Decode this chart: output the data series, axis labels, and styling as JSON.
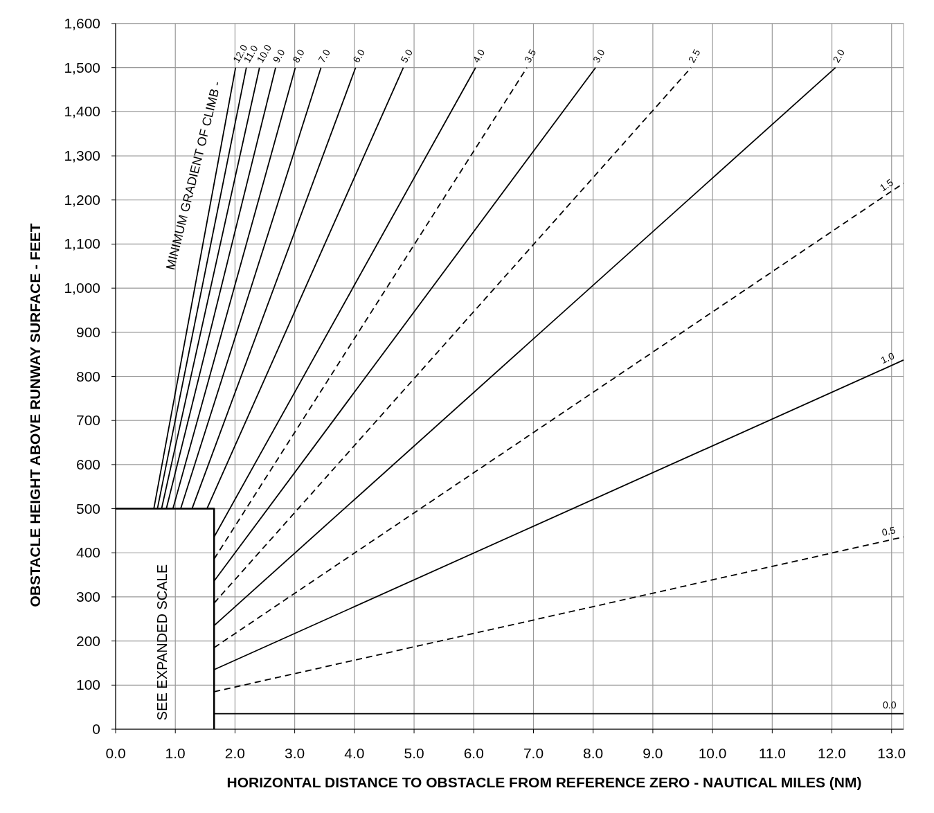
{
  "chart_data": {
    "type": "line",
    "xlabel": "HORIZONTAL DISTANCE TO OBSTACLE FROM REFERENCE ZERO - NAUTICAL MILES (NM)",
    "ylabel": "OBSTACLE HEIGHT ABOVE RUNWAY SURFACE - FEET",
    "xlim": [
      0,
      13.2
    ],
    "ylim": [
      0,
      1600
    ],
    "xticks": [
      {
        "value": 0,
        "label": "0.0"
      },
      {
        "value": 1,
        "label": "1.0"
      },
      {
        "value": 2,
        "label": "2.0"
      },
      {
        "value": 3,
        "label": "3.0"
      },
      {
        "value": 4,
        "label": "4.0"
      },
      {
        "value": 5,
        "label": "5.0"
      },
      {
        "value": 6,
        "label": "6.0"
      },
      {
        "value": 7,
        "label": "7.0"
      },
      {
        "value": 8,
        "label": "8.0"
      },
      {
        "value": 9,
        "label": "9.0"
      },
      {
        "value": 10,
        "label": "10.0"
      },
      {
        "value": 11,
        "label": "11.0"
      },
      {
        "value": 12,
        "label": "12.0"
      },
      {
        "value": 13,
        "label": "13.0"
      }
    ],
    "yticks": [
      0,
      100,
      200,
      300,
      400,
      500,
      600,
      700,
      800,
      900,
      {
        "value": 1000,
        "label": "1,000"
      },
      {
        "value": 1100,
        "label": "1,100"
      },
      {
        "value": 1200,
        "label": "1,200"
      },
      {
        "value": 1300,
        "label": "1,300"
      },
      {
        "value": 1400,
        "label": "1,400"
      },
      {
        "value": 1500,
        "label": "1,500"
      },
      {
        "value": 1600,
        "label": "1,600"
      }
    ],
    "grid": true,
    "marker": "none",
    "annotations": [
      "MINIMUM GRADIENT OF CLIMB -",
      "SEE EXPANDED SCALE"
    ],
    "series": [
      {
        "color": "#000000",
        "line_style": "solid",
        "x": [
          0,
          1.65,
          1.65
        ],
        "values": [
          500,
          500,
          0
        ]
      },
      {
        "name": "0.0",
        "color": "#000000",
        "line_style": "solid",
        "x": [
          1.65,
          13.2
        ],
        "values": [
          35,
          35
        ]
      },
      {
        "name": "0.5",
        "color": "#000000",
        "line_style": "dashed",
        "x": [
          1.65,
          13.2
        ],
        "values": [
          85,
          436
        ]
      },
      {
        "name": "1.0",
        "color": "#000000",
        "line_style": "solid",
        "x": [
          1.65,
          13.2
        ],
        "values": [
          135,
          837
        ]
      },
      {
        "name": "1.5",
        "color": "#000000",
        "line_style": "dashed",
        "x": [
          1.65,
          13.2
        ],
        "values": [
          185,
          1238
        ]
      },
      {
        "name": "2.0",
        "color": "#000000",
        "line_style": "solid",
        "x": [
          1.65,
          12.06
        ],
        "values": [
          235,
          1500
        ]
      },
      {
        "name": "2.5",
        "color": "#000000",
        "line_style": "dashed",
        "x": [
          1.65,
          9.64
        ],
        "values": [
          286,
          1500
        ]
      },
      {
        "name": "3.0",
        "color": "#000000",
        "line_style": "solid",
        "x": [
          1.65,
          8.04
        ],
        "values": [
          336,
          1500
        ]
      },
      {
        "name": "3.5",
        "color": "#000000",
        "line_style": "dashed",
        "x": [
          1.65,
          6.89
        ],
        "values": [
          386,
          1500
        ]
      },
      {
        "name": "4.0",
        "color": "#000000",
        "line_style": "solid",
        "x": [
          1.65,
          6.03
        ],
        "values": [
          436,
          1500
        ]
      },
      {
        "name": "5.0",
        "color": "#000000",
        "line_style": "solid",
        "x": [
          1.53,
          4.82
        ],
        "values": [
          500,
          1500
        ]
      },
      {
        "name": "6.0",
        "color": "#000000",
        "line_style": "solid",
        "x": [
          1.28,
          4.02
        ],
        "values": [
          500,
          1500
        ]
      },
      {
        "name": "7.0",
        "color": "#000000",
        "line_style": "solid",
        "x": [
          1.09,
          3.44
        ],
        "values": [
          500,
          1500
        ]
      },
      {
        "name": "8.0",
        "color": "#000000",
        "line_style": "solid",
        "x": [
          0.96,
          3.01
        ],
        "values": [
          500,
          1500
        ]
      },
      {
        "name": "9.0",
        "color": "#000000",
        "line_style": "solid",
        "x": [
          0.85,
          2.68
        ],
        "values": [
          500,
          1500
        ]
      },
      {
        "name": "10.0",
        "color": "#000000",
        "line_style": "solid",
        "x": [
          0.77,
          2.41
        ],
        "values": [
          500,
          1500
        ]
      },
      {
        "name": "11.0",
        "color": "#000000",
        "line_style": "solid",
        "x": [
          0.7,
          2.19
        ],
        "values": [
          500,
          1500
        ]
      },
      {
        "name": "12.0",
        "color": "#000000",
        "line_style": "solid",
        "x": [
          0.64,
          2.01
        ],
        "values": [
          500,
          1500
        ]
      }
    ]
  }
}
